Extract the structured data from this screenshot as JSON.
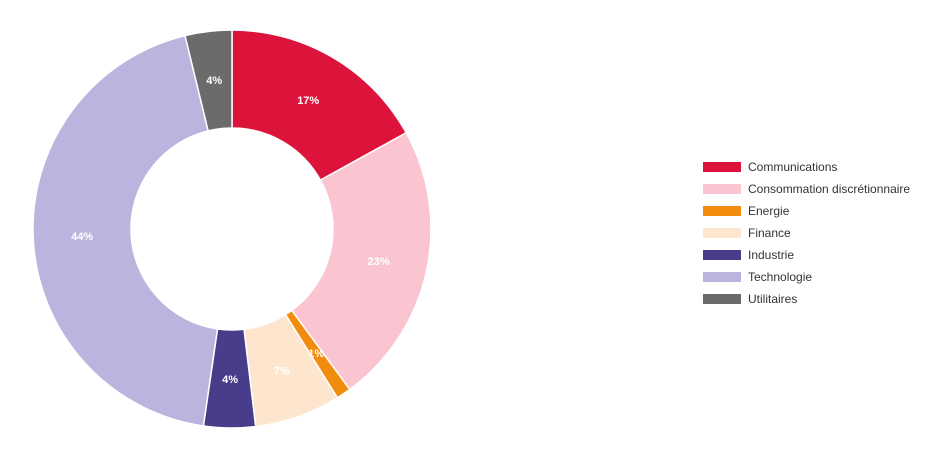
{
  "chart_data": {
    "type": "pie",
    "donut": true,
    "legend_position": "right",
    "slices": [
      {
        "name": "Communications",
        "value": 17,
        "label": "17%",
        "color": "#DC143C",
        "label_color": "#ffffff"
      },
      {
        "name": "Consommation discrétionnaire",
        "value": 23,
        "label": "23%",
        "color": "#FAC5D0",
        "label_color": "#ffffff"
      },
      {
        "name": "Energie",
        "value": 1.2,
        "label": "1%",
        "color": "#F28C0F",
        "label_color": "#ffffff"
      },
      {
        "name": "Finance",
        "value": 7,
        "label": "7%",
        "color": "#FDE6CD",
        "label_color": "#ffffff"
      },
      {
        "name": "Industrie",
        "value": 4.2,
        "label": "4%",
        "color": "#483D8B",
        "label_color": "#ffffff"
      },
      {
        "name": "Technologie",
        "value": 44,
        "label": "44%",
        "color": "#BBB4DF",
        "label_color": "#ffffff"
      },
      {
        "name": "Utilitaires",
        "value": 3.8,
        "label": "4%",
        "color": "#6B6B6B",
        "label_color": "#ffffff"
      }
    ]
  }
}
